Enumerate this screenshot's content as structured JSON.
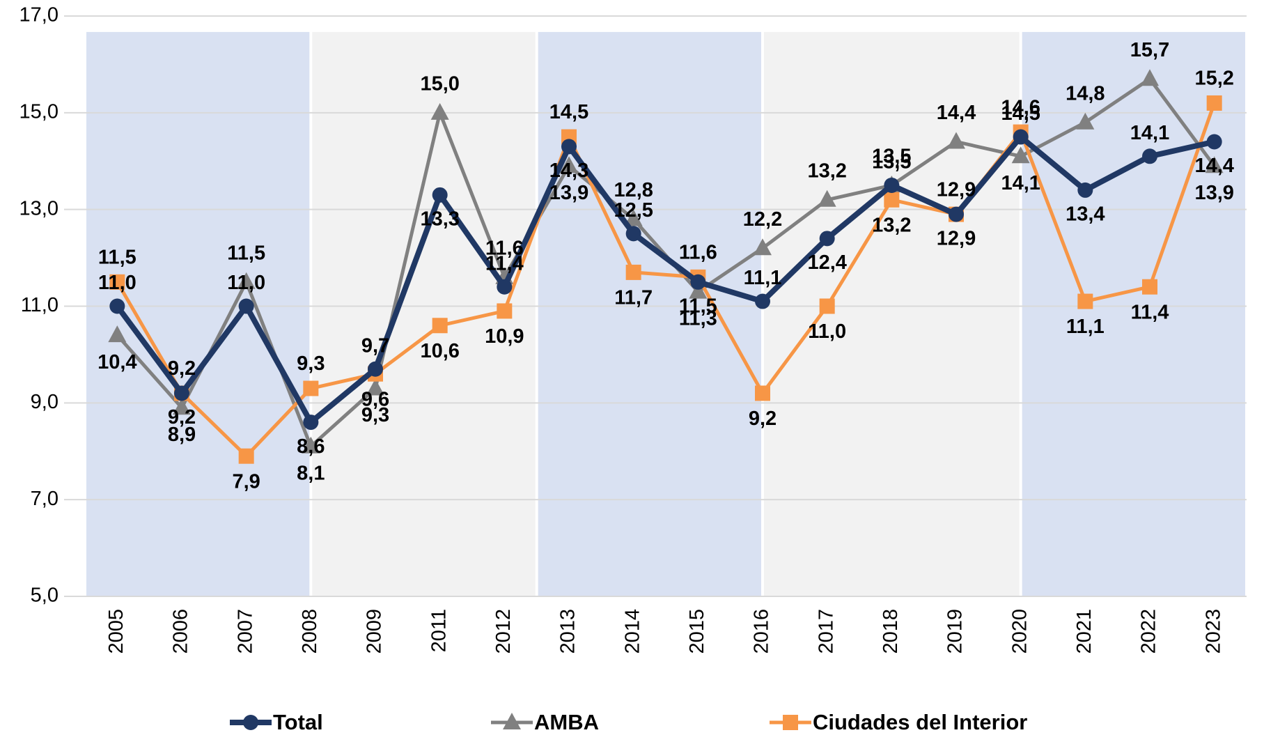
{
  "chart_data": {
    "type": "line",
    "categories": [
      "2005",
      "2006",
      "2007",
      "2008",
      "2009",
      "2011",
      "2012",
      "2013",
      "2014",
      "2015",
      "2016",
      "2017",
      "2018",
      "2019",
      "2020",
      "2021",
      "2022",
      "2023"
    ],
    "ylim": [
      5,
      17
    ],
    "yticks": [
      {
        "value": 5,
        "label": "5,0"
      },
      {
        "value": 7,
        "label": "7,0"
      },
      {
        "value": 9,
        "label": "9,0"
      },
      {
        "value": 11,
        "label": "11,0"
      },
      {
        "value": 13,
        "label": "13,0"
      },
      {
        "value": 15,
        "label": "15,0"
      },
      {
        "value": 17,
        "label": "17,0"
      }
    ],
    "grid": true,
    "legend": "bottom",
    "series": [
      {
        "name": "Total",
        "color": "#203864",
        "marker": "circle",
        "values": [
          11.0,
          9.2,
          11.0,
          8.6,
          9.7,
          13.3,
          11.4,
          14.3,
          12.5,
          11.5,
          11.1,
          12.4,
          13.5,
          12.9,
          14.5,
          13.4,
          14.1,
          14.4
        ],
        "value_labels": [
          "11,0",
          "9,2",
          "11,0",
          "8,6",
          "9,7",
          "13,3",
          "11,4",
          "14,3",
          "12,5",
          "11,5",
          "11,1",
          "12,4",
          "13,5",
          "12,9",
          "14,5",
          "13,4",
          "14,1",
          "14,4"
        ]
      },
      {
        "name": "AMBA",
        "color": "#808080",
        "marker": "triangle",
        "values": [
          10.4,
          8.9,
          11.5,
          8.1,
          9.3,
          15.0,
          11.6,
          13.9,
          12.8,
          11.3,
          12.2,
          13.2,
          13.5,
          14.4,
          14.1,
          14.8,
          15.7,
          13.9
        ],
        "value_labels": [
          "10,4",
          "8,9",
          "11,5",
          "8,1",
          "9,3",
          "15,0",
          "11,6",
          "13,9",
          "12,8",
          "11,3",
          "12,2",
          "13,2",
          "13,5",
          "14,4",
          "14,1",
          "14,8",
          "15,7",
          "13,9"
        ]
      },
      {
        "name": "Ciudades del Interior",
        "color": "#f79646",
        "marker": "square",
        "values": [
          11.5,
          9.2,
          7.9,
          9.3,
          9.6,
          10.6,
          10.9,
          14.5,
          11.7,
          11.6,
          9.2,
          11.0,
          13.2,
          12.9,
          14.6,
          11.1,
          11.4,
          15.2
        ],
        "value_labels": [
          "11,5",
          "9,2",
          "7,9",
          "9,3",
          "9,6",
          "10,6",
          "10,9",
          "14,5",
          "11,7",
          "11,6",
          "9,2",
          "11,0",
          "13,2",
          "12,9",
          "14,6",
          "11,1",
          "11,4",
          "15,2"
        ]
      }
    ]
  }
}
